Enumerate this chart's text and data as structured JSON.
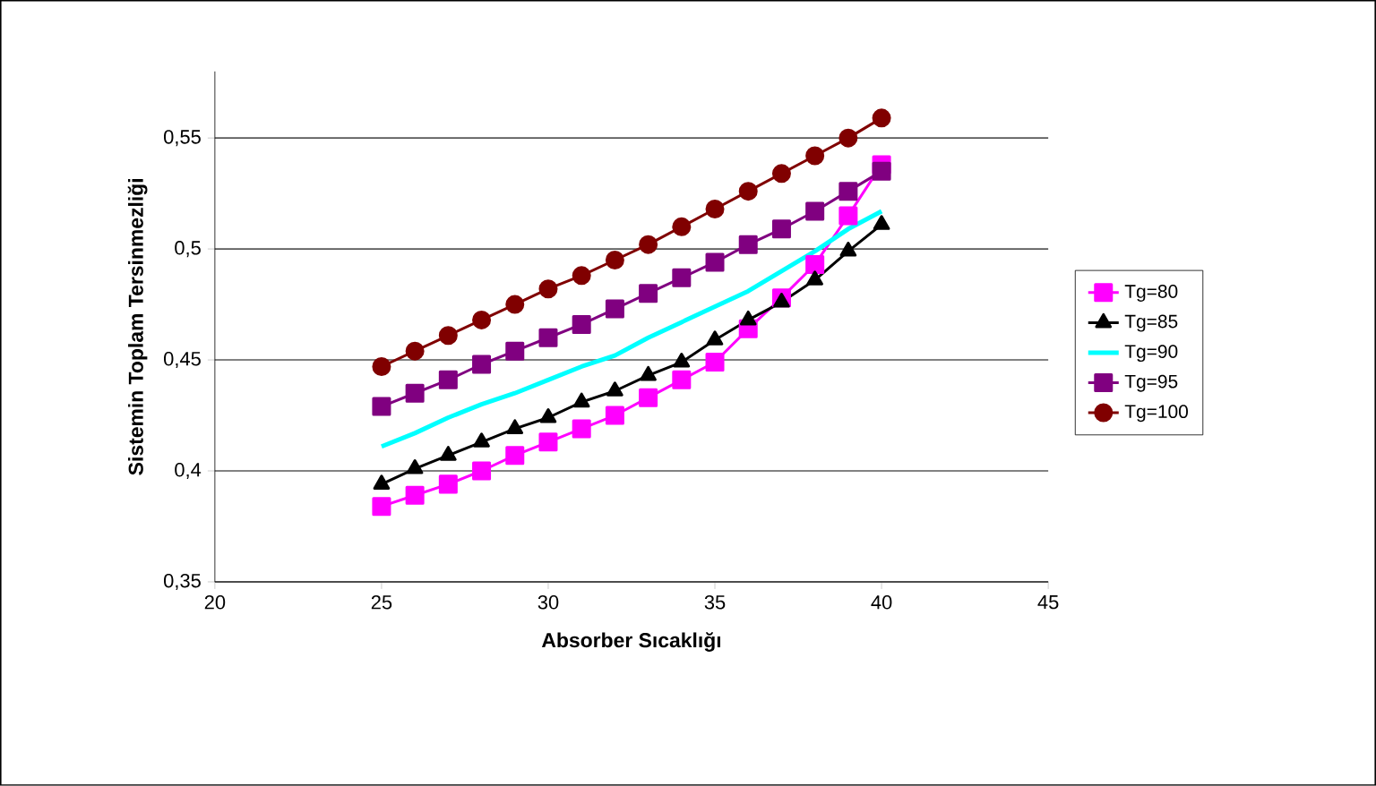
{
  "chart_data": {
    "type": "line",
    "xlabel": "Absorber Sıcaklığı",
    "ylabel": "Sistemin Toplam Tersinmezliği",
    "x": [
      25,
      26,
      27,
      28,
      29,
      30,
      31,
      32,
      33,
      34,
      35,
      36,
      37,
      38,
      39,
      40
    ],
    "series": [
      {
        "name": "Tg=80",
        "color": "#ff00ff",
        "marker": "square",
        "values": [
          0.384,
          0.389,
          0.394,
          0.4,
          0.407,
          0.413,
          0.419,
          0.425,
          0.433,
          0.441,
          0.449,
          0.464,
          0.478,
          0.493,
          0.515,
          0.538
        ]
      },
      {
        "name": "Tg=85",
        "color": "#000000",
        "marker": "triangle",
        "values": [
          0.394,
          0.401,
          0.407,
          0.413,
          0.419,
          0.424,
          0.431,
          0.436,
          0.443,
          0.449,
          0.459,
          0.468,
          0.476,
          0.486,
          0.499,
          0.511
        ]
      },
      {
        "name": "Tg=90",
        "color": "#00ffff",
        "marker": "none",
        "values": [
          0.411,
          0.417,
          0.424,
          0.43,
          0.435,
          0.441,
          0.447,
          0.452,
          0.46,
          0.467,
          0.474,
          0.481,
          0.49,
          0.499,
          0.509,
          0.517
        ]
      },
      {
        "name": "Tg=95",
        "color": "#800080",
        "marker": "square",
        "values": [
          0.429,
          0.435,
          0.441,
          0.448,
          0.454,
          0.46,
          0.466,
          0.473,
          0.48,
          0.487,
          0.494,
          0.502,
          0.509,
          0.517,
          0.526,
          0.535
        ]
      },
      {
        "name": "Tg=100",
        "color": "#800000",
        "marker": "circle",
        "values": [
          0.447,
          0.454,
          0.461,
          0.468,
          0.475,
          0.482,
          0.488,
          0.495,
          0.502,
          0.51,
          0.518,
          0.526,
          0.534,
          0.542,
          0.55,
          0.559
        ]
      }
    ],
    "xlim": [
      20,
      45
    ],
    "xticks": [
      20,
      25,
      30,
      35,
      40,
      45
    ],
    "ylim": [
      0.35,
      0.58
    ],
    "yticks": [
      {
        "value": 0.35,
        "label": "0,35"
      },
      {
        "value": 0.4,
        "label": "0,4"
      },
      {
        "value": 0.45,
        "label": "0,45"
      },
      {
        "value": 0.5,
        "label": "0,5"
      },
      {
        "value": 0.55,
        "label": "0,55"
      }
    ],
    "grid": "y",
    "legend": "right"
  }
}
